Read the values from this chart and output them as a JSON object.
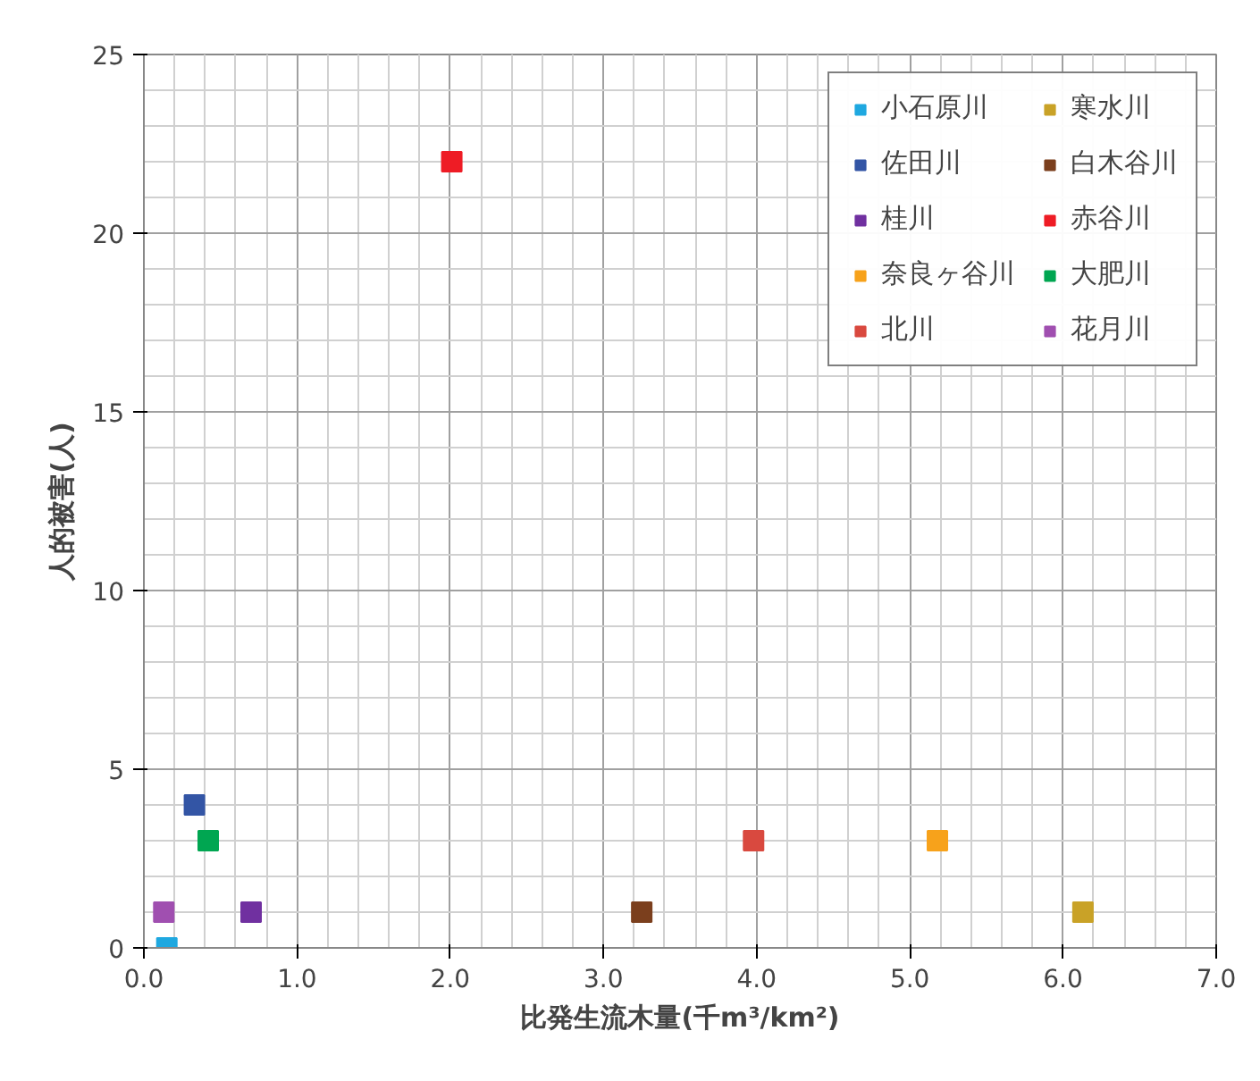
{
  "chart_data": {
    "type": "scatter",
    "xlabel": "比発生流木量(千m³/km²)",
    "ylabel": "人的被害(人)",
    "xlim": [
      0,
      7
    ],
    "ylim": [
      0,
      25
    ],
    "xticks": [
      {
        "value": 0,
        "label": "0.0"
      },
      {
        "value": 1,
        "label": "1.0"
      },
      {
        "value": 2,
        "label": "2.0"
      },
      {
        "value": 3,
        "label": "3.0"
      },
      {
        "value": 4,
        "label": "4.0"
      },
      {
        "value": 5,
        "label": "5.0"
      },
      {
        "value": 6,
        "label": "6.0"
      },
      {
        "value": 7,
        "label": "7.0"
      }
    ],
    "yticks": [
      0,
      5,
      10,
      15,
      20,
      25
    ],
    "grid": true,
    "legend": "top right",
    "marker": "square",
    "series": [
      {
        "name": "小石原川",
        "color": "#1fa8e0",
        "x": [
          0.15
        ],
        "values": [
          0
        ]
      },
      {
        "name": "佐田川",
        "color": "#3355a5",
        "x": [
          0.33
        ],
        "values": [
          4
        ]
      },
      {
        "name": "桂川",
        "color": "#7030a0",
        "x": [
          0.7
        ],
        "values": [
          1
        ]
      },
      {
        "name": "奈良ヶ谷川",
        "color": "#f7a21b",
        "x": [
          5.18
        ],
        "values": [
          3
        ]
      },
      {
        "name": "北川",
        "color": "#d9493f",
        "x": [
          3.98
        ],
        "values": [
          3
        ]
      },
      {
        "name": "寒水川",
        "color": "#c9a227",
        "x": [
          6.13
        ],
        "values": [
          1
        ]
      },
      {
        "name": "白木谷川",
        "color": "#7b3f1d",
        "x": [
          3.25
        ],
        "values": [
          1
        ]
      },
      {
        "name": "赤谷川",
        "color": "#ee1c25",
        "x": [
          2.01
        ],
        "values": [
          22
        ]
      },
      {
        "name": "大肥川",
        "color": "#00a651",
        "x": [
          0.42
        ],
        "values": [
          3
        ]
      },
      {
        "name": "花月川",
        "color": "#a04fb0",
        "x": [
          0.13
        ],
        "values": [
          1
        ]
      }
    ]
  }
}
